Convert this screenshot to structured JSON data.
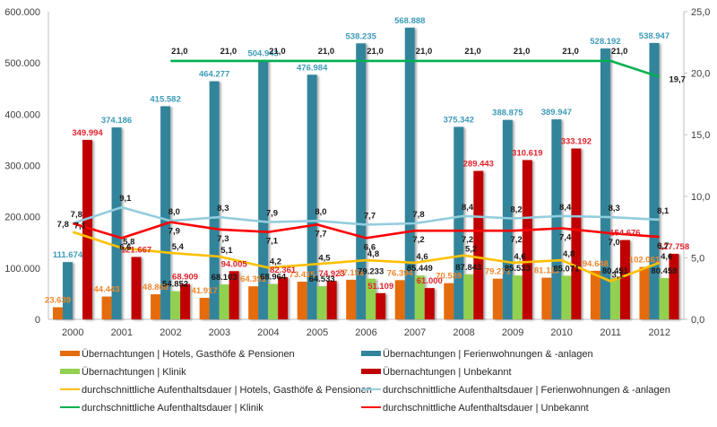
{
  "chart_data": {
    "type": "bar",
    "title": "",
    "xlabel": "",
    "ylabel": "",
    "grid": false,
    "legend_position": "bottom",
    "categories": [
      "2000",
      "2001",
      "2002",
      "2003",
      "2004",
      "2005",
      "2006",
      "2007",
      "2008",
      "2009",
      "2010",
      "2011",
      "2012"
    ],
    "y_left": {
      "ylim": [
        0,
        600000
      ],
      "tick_values": [
        0,
        100000,
        200000,
        300000,
        400000,
        500000,
        600000
      ],
      "tick_labels": [
        "0",
        "100.000",
        "200.000",
        "300.000",
        "400.000",
        "500.000",
        "600.000"
      ]
    },
    "y_right": {
      "ylim": [
        0,
        25
      ],
      "tick_values": [
        0,
        5,
        10,
        15,
        20,
        25
      ],
      "tick_labels": [
        "0,0",
        "5,0",
        "10,0",
        "15,0",
        "20,0",
        "25,0"
      ]
    },
    "series": [
      {
        "name": "Übernachtungen | Hotels, Gasthöfe & Pensionen",
        "kind": "bar",
        "axis": "left",
        "color": "#E46C0A",
        "label_color": "#F0862A",
        "values": [
          23639,
          44443,
          48868,
          41917,
          64391,
          73415,
          77156,
          76394,
          70539,
          79271,
          81111,
          94648,
          102061
        ],
        "labels": [
          "23.639",
          "44.443",
          "48.868",
          "41.917",
          "64.391",
          "73.415",
          "77.156",
          "76.394",
          "70.539",
          "79.271",
          "81.111",
          "94.648",
          "102.061"
        ]
      },
      {
        "name": "Übernachtungen | Ferienwohnungen & -anlagen",
        "kind": "bar",
        "axis": "left",
        "color": "#31849B",
        "label_color": "#3D9BB8",
        "values": [
          111674,
          374186,
          415582,
          464277,
          504943,
          476984,
          538235,
          568888,
          375342,
          388875,
          389947,
          528192,
          538947
        ],
        "labels": [
          "111.674",
          "374.186",
          "415.582",
          "464.277",
          "504.943",
          "476.984",
          "538.235",
          "568.888",
          "375.342",
          "388.875",
          "389.947",
          "528.192",
          "538.947"
        ]
      },
      {
        "name": "Übernachtungen | Klinik",
        "kind": "bar",
        "axis": "left",
        "color": "#92D050",
        "label_color": "#1A1A1A",
        "values": [
          null,
          null,
          54852,
          68103,
          68964,
          64533,
          79233,
          85449,
          87843,
          85533,
          85071,
          80451,
          80458
        ],
        "labels": [
          null,
          null,
          "54.852",
          "68.103",
          "68.964",
          "64.533",
          "79.233",
          "85.449",
          "87.843",
          "85.533",
          "85.071",
          "80.451",
          "80.458"
        ]
      },
      {
        "name": "Übernachtungen | Unbekannt",
        "kind": "bar",
        "axis": "left",
        "color": "#C00000",
        "label_color": "#E0222C",
        "values": [
          349994,
          121667,
          68909,
          94005,
          82361,
          74923,
          51109,
          61000,
          289443,
          310619,
          333192,
          154676,
          127758
        ],
        "labels": [
          "349.994",
          "121.667",
          "68.909",
          "94.005",
          "82.361",
          "74.923",
          "51.109",
          "61.000",
          "289.443",
          "310.619",
          "333.192",
          "154.676",
          "127.758"
        ]
      },
      {
        "name": "durchschnittliche Aufenthaltsdauer | Hotels, Gasthöfe & Pensionen",
        "kind": "line",
        "axis": "right",
        "color": "#FFC000",
        "label_color": "#1A1A1A",
        "values": [
          7.1,
          5.8,
          5.4,
          5.1,
          4.2,
          4.5,
          4.8,
          4.6,
          5.2,
          4.6,
          4.8,
          3.1,
          4.6
        ],
        "labels": [
          "7,1",
          "5,8",
          "5,4",
          "5,1",
          "4,2",
          "4,5",
          "4,8",
          "4,6",
          "5,2",
          "4,6",
          "4,8",
          "3,1",
          "4,6"
        ]
      },
      {
        "name": "durchschnittliche Aufenthaltsdauer | Ferienwohnungen & -anlagen",
        "kind": "line",
        "axis": "right",
        "color": "#93CDDD",
        "label_color": "#1A1A1A",
        "values": [
          7.8,
          9.1,
          8.0,
          8.3,
          7.9,
          8.0,
          7.7,
          7.8,
          8.4,
          8.2,
          8.4,
          8.3,
          8.1
        ],
        "labels": [
          "7,8",
          "9,1",
          "8,0",
          "8,3",
          "7,9",
          "8,0",
          "7,7",
          "7,8",
          "8,4",
          "8,2",
          "8,4",
          "8,3",
          "8,1"
        ]
      },
      {
        "name": "durchschnittliche Aufenthaltsdauer | Klinik",
        "kind": "line",
        "axis": "right",
        "color": "#00B050",
        "label_color": "#1A1A1A",
        "values": [
          null,
          null,
          21.0,
          21.0,
          21.0,
          21.0,
          21.0,
          21.0,
          21.0,
          21.0,
          21.0,
          21.0,
          19.7
        ],
        "labels": [
          null,
          null,
          "21,0",
          "21,0",
          "21,0",
          "21,0",
          "21,0",
          "21,0",
          "21,0",
          "21,0",
          "21,0",
          "21,0",
          "19,7"
        ]
      },
      {
        "name": "durchschnittliche Aufenthaltsdauer | Unbekannt",
        "kind": "line",
        "axis": "right",
        "color": "#FF0000",
        "label_color": "#1A1A1A",
        "values": [
          7.8,
          6.6,
          7.9,
          7.3,
          7.1,
          7.7,
          6.6,
          7.2,
          7.2,
          7.2,
          7.4,
          7.0,
          6.7
        ],
        "labels": [
          "7,8",
          "6,6",
          "7,9",
          "7,3",
          "7,1",
          "7,7",
          "6,6",
          "7,2",
          "7,2",
          "7,2",
          "7,4",
          "7,0",
          "6,7"
        ]
      }
    ],
    "legend": {
      "entries": [
        "Übernachtungen | Hotels, Gasthöfe & Pensionen",
        "Übernachtungen | Ferienwohnungen & -anlagen",
        "Übernachtungen | Klinik",
        "Übernachtungen | Unbekannt",
        "durchschnittliche Aufenthaltsdauer | Hotels, Gasthöfe & Pensionen",
        "durchschnittliche Aufenthaltsdauer | Ferienwohnungen & -anlagen",
        "durchschnittliche Aufenthaltsdauer | Klinik",
        "durchschnittliche Aufenthaltsdauer | Unbekannt"
      ]
    }
  }
}
